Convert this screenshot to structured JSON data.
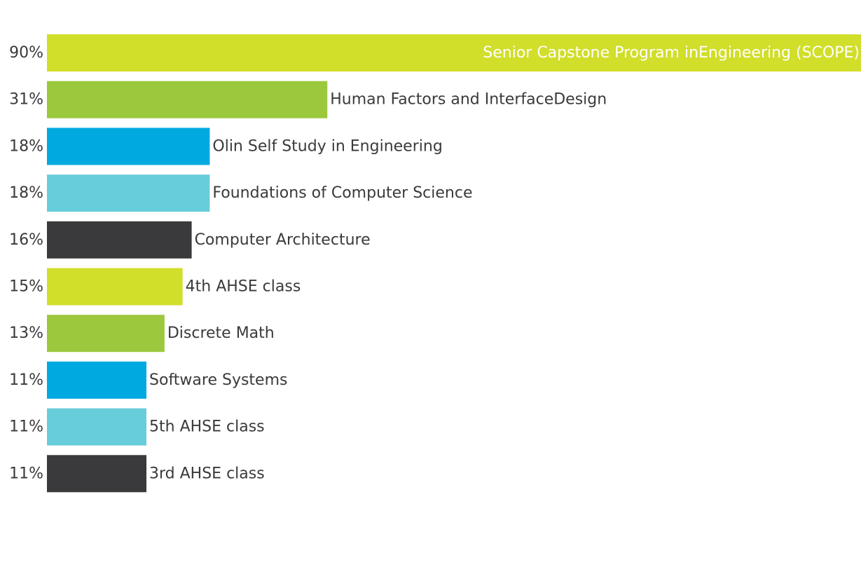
{
  "chart_data": {
    "type": "bar",
    "orientation": "horizontal",
    "categories": [
      "Senior Capstone Program inEngineering (SCOPE)",
      "Human Factors and InterfaceDesign",
      "Olin Self Study in Engineering",
      "Foundations of Computer Science",
      "Computer Architecture",
      "4th AHSE class",
      "Discrete Math",
      "Software Systems",
      "5th AHSE class",
      "3rd AHSE class"
    ],
    "values": [
      90,
      31,
      18,
      18,
      16,
      15,
      13,
      11,
      11,
      11
    ],
    "value_labels": [
      "90%",
      "31%",
      "18%",
      "18%",
      "16%",
      "15%",
      "13%",
      "11%",
      "11%",
      "11%"
    ],
    "colors": [
      "#d1de2a",
      "#9bc83d",
      "#00a9e0",
      "#68cddb",
      "#3a3a3c",
      "#d1de2a",
      "#9bc83d",
      "#00a9e0",
      "#68cddb",
      "#3a3a3c"
    ],
    "xlim": [
      0,
      90
    ],
    "grid": false,
    "legend": "none"
  }
}
